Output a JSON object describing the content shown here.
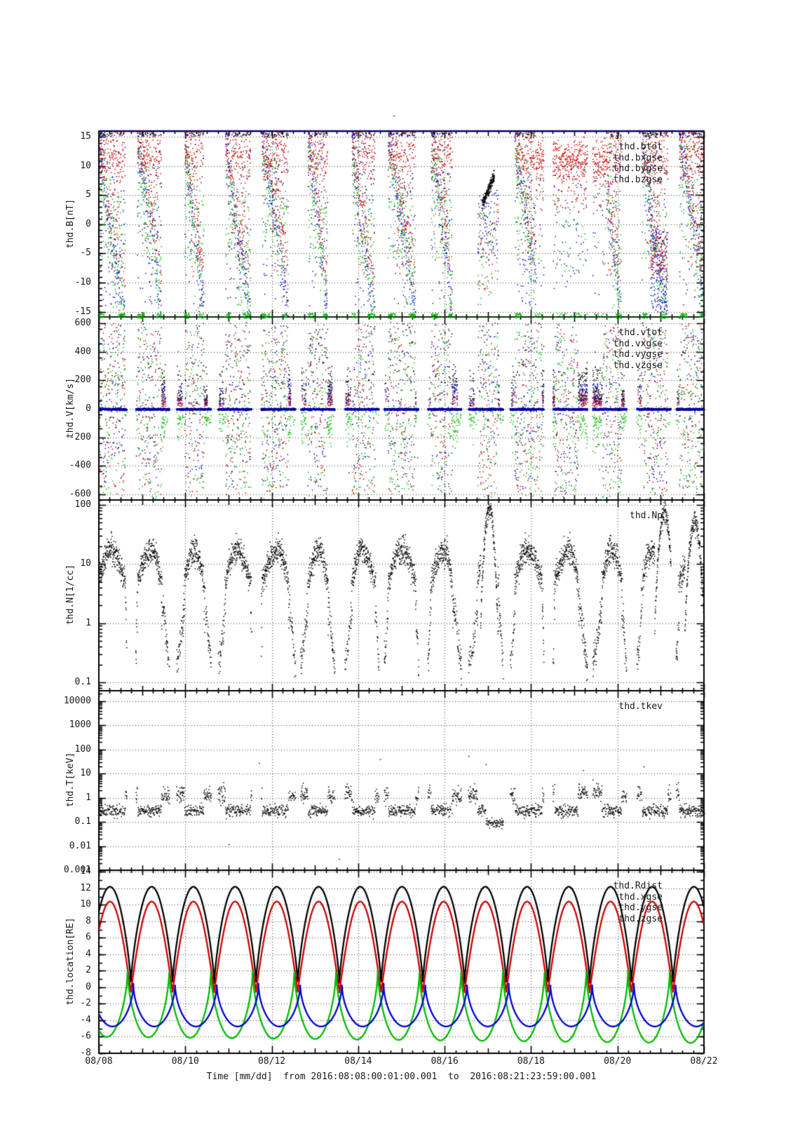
{
  "figure": {
    "title_placeholder": "-",
    "background": "#ffffff"
  },
  "palette": {
    "black": "#000000",
    "red": "#cc0000",
    "green": "#00bb00",
    "blue": "#0000cc",
    "grid": "#3c3c3c",
    "frame": "#000000",
    "frame_top": "#000066",
    "legend_text": "#1a1a1a"
  },
  "chart_data": {
    "type": "scatter",
    "panel_count": 5,
    "time_axis": {
      "title": "Time [mm/dd]  from 2016:08:08:00:01:00.001  to  2016:08:21:23:59:00.001",
      "tick_labels": [
        "08/08",
        "08/10",
        "08/12",
        "08/14",
        "08/16",
        "08/18",
        "08/20",
        "08/22"
      ],
      "span_days": 14,
      "major_step_days": 2,
      "mid_step_days": 1,
      "minor_step_days": 0.25
    },
    "orbit": {
      "period_days": 0.965,
      "first_perigee_day": 0.74,
      "gap_half_days": 0.085,
      "sheath_half_days": 0.27
    },
    "events": {
      "red_absent": [
        8.6,
        9.35
      ],
      "black_streak": {
        "t": [
          8.86,
          9.14
        ],
        "range_nT": [
          3.5,
          8.5
        ]
      },
      "red_interval": [
        10.1,
        11.75
      ],
      "blue_dense": [
        12.75,
        13.15
      ],
      "t_dip": {
        "t": [
          8.95,
          9.35
        ],
        "log10_keV": -1.03
      },
      "np_arcs": [
        [
          8.82,
          9.22,
          1.95
        ],
        [
          12.85,
          13.3,
          1.88
        ],
        [
          13.55,
          14.0,
          1.72
        ]
      ]
    },
    "panels": [
      {
        "id": "B",
        "ylabel": "thd.B[nT]",
        "scale": "linear",
        "ylim": [
          -15.9,
          16.0
        ],
        "minor_step": 1,
        "yticks": [
          {
            "v": 15,
            "label": "15"
          },
          {
            "v": 10,
            "label": "10"
          },
          {
            "v": 5,
            "label": "5"
          },
          {
            "v": 0,
            "label": "0"
          },
          {
            "v": -5,
            "label": "-5"
          },
          {
            "v": -10,
            "label": "-10"
          },
          {
            "v": -15,
            "label": "-15"
          }
        ],
        "legend": [
          {
            "label": "thd.btot",
            "color": "#000000"
          },
          {
            "label": "thd.bxgse",
            "color": "#cc0000"
          },
          {
            "label": "thd.bygse",
            "color": "#00bb00"
          },
          {
            "label": "thd.bzgse",
            "color": "#0000cc"
          }
        ],
        "features": {
          "bx_cloud_nT": [
            8,
            15.5
          ],
          "bz_diagonal_nT": [
            15,
            -15
          ],
          "by_pile_nT": -15.3,
          "visible_only_near_apogee": true
        }
      },
      {
        "id": "V",
        "ylabel": "thd.V[km/s]",
        "scale": "linear",
        "ylim": [
          -640,
          645
        ],
        "minor_step": 100,
        "yticks": [
          {
            "v": 600,
            "label": "600"
          },
          {
            "v": 400,
            "label": "400"
          },
          {
            "v": 200,
            "label": "200"
          },
          {
            "v": 0,
            "label": "0"
          },
          {
            "v": -200,
            "label": "-200"
          },
          {
            "v": -400,
            "label": "-400"
          },
          {
            "v": -600,
            "label": "-600"
          }
        ],
        "legend": [
          {
            "label": "thd.vtot",
            "color": "#000000"
          },
          {
            "label": "thd.vxgse",
            "color": "#cc0000"
          },
          {
            "label": "thd.vygse",
            "color": "#00bb00"
          },
          {
            "label": "thd.vzgse",
            "color": "#0000cc"
          }
        ],
        "features": {
          "quiet_line_kms": 0,
          "sheath_spread_kms": [
            -640,
            620
          ],
          "flow_bursts_kms": [
            60,
            300
          ],
          "vy_arcs_kms": [
            -260,
            -40
          ]
        }
      },
      {
        "id": "N",
        "ylabel": "thd.N[1/cc]",
        "scale": "log",
        "ylim": [
          0.072,
          121
        ],
        "yticks": [
          {
            "v": 100,
            "label": "100"
          },
          {
            "v": 10,
            "label": "10"
          },
          {
            "v": 1,
            "label": "1"
          },
          {
            "v": 0.1,
            "label": "0.1"
          }
        ],
        "legend": [
          {
            "label": "thd.Np",
            "color": "#000000"
          }
        ],
        "features": {
          "sheath_density_cc": [
            8,
            30
          ],
          "msphere_density_cc": [
            0.15,
            1.0
          ],
          "peaks_cc": {
            "t_days": [
              9.0,
              13.1,
              13.8
            ],
            "values": [
              90,
              75,
              52
            ]
          }
        }
      },
      {
        "id": "T",
        "ylabel": "thd.T[keV]",
        "scale": "log",
        "ylim": [
          0.001,
          27000
        ],
        "yticks": [
          {
            "v": 10000,
            "label": "10000"
          },
          {
            "v": 1000,
            "label": "1000"
          },
          {
            "v": 100,
            "label": "100"
          },
          {
            "v": 10,
            "label": "10"
          },
          {
            "v": 1,
            "label": "1"
          },
          {
            "v": 0.1,
            "label": "0.1"
          },
          {
            "v": 0.01,
            "label": "0.01"
          },
          {
            "v": 0.001,
            "label": "0.001"
          }
        ],
        "legend": [
          {
            "label": "thd.tkev",
            "color": "#000000"
          }
        ],
        "features": {
          "msphere_keV": [
            0.7,
            2.5
          ],
          "sheath_keV": [
            0.2,
            0.45
          ],
          "dip_keV": 0.09,
          "outliers": [
            [
              3.7,
              28
            ],
            [
              6.5,
              40
            ],
            [
              8.55,
              55
            ],
            [
              8.95,
              25
            ],
            [
              11.2,
              14
            ],
            [
              12.6,
              20
            ],
            [
              5.55,
              0.003
            ],
            [
              3.0,
              0.012
            ]
          ]
        }
      },
      {
        "id": "location",
        "ylabel": "thd.location[RE]",
        "scale": "linear",
        "ylim": [
          -8,
          14.2
        ],
        "minor_step": 1,
        "yticks": [
          {
            "v": 14,
            "label": "14"
          },
          {
            "v": 12,
            "label": "12"
          },
          {
            "v": 10,
            "label": "10"
          },
          {
            "v": 8,
            "label": "8"
          },
          {
            "v": 6,
            "label": "6"
          },
          {
            "v": 4,
            "label": "4"
          },
          {
            "v": 2,
            "label": "2"
          },
          {
            "v": 0,
            "label": "0"
          },
          {
            "v": -2,
            "label": "-2"
          },
          {
            "v": -4,
            "label": "-4"
          },
          {
            "v": -6,
            "label": "-6"
          },
          {
            "v": -8,
            "label": "-8"
          }
        ],
        "legend": [
          {
            "label": "thd.Rdist",
            "color": "#000000"
          },
          {
            "label": "thd.xgse",
            "color": "#cc0000"
          },
          {
            "label": "thd.ygse",
            "color": "#00bb00"
          },
          {
            "label": "thd.zgse",
            "color": "#0000cc"
          }
        ],
        "series": [
          {
            "name": "thd.Rdist",
            "color": "#000000",
            "mode": "apogee-peak",
            "perigee": 0.55,
            "apogee": 12.2,
            "shape_exp": 0.75,
            "phase_days": 0
          },
          {
            "name": "thd.xgse",
            "color": "#cc0000",
            "mode": "apogee-peak",
            "perigee": -0.6,
            "apogee": 10.4,
            "shape_exp": 0.95,
            "phase_days": 0
          },
          {
            "name": "thd.ygse",
            "color": "#00bb00",
            "mode": "perigee-peak",
            "max": 2.2,
            "min": -6.0,
            "min_drift_per_day": -0.055,
            "shape_exp": 0.55,
            "phase_days": -0.08
          },
          {
            "name": "thd.zgse",
            "color": "#0000cc",
            "mode": "perigee-peak",
            "max": 0.55,
            "min": -4.75,
            "min_drift_per_day": 0,
            "shape_exp": 0.5,
            "phase_days": 0.06
          }
        ]
      }
    ]
  }
}
